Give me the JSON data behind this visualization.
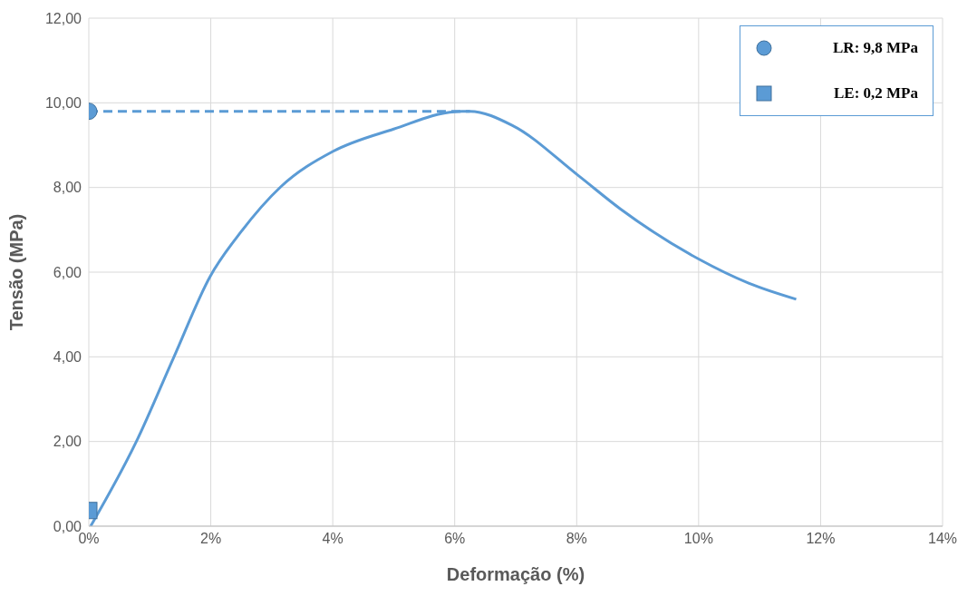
{
  "chart_data": {
    "type": "line",
    "xlabel": "Deformação (%)",
    "ylabel": "Tensão (MPa)",
    "xlim": [
      0,
      14
    ],
    "ylim": [
      0,
      12
    ],
    "xticks": [
      {
        "value": 0,
        "label": "0%"
      },
      {
        "value": 2,
        "label": "2%"
      },
      {
        "value": 4,
        "label": "4%"
      },
      {
        "value": 6,
        "label": "6%"
      },
      {
        "value": 8,
        "label": "8%"
      },
      {
        "value": 10,
        "label": "10%"
      },
      {
        "value": 12,
        "label": "12%"
      },
      {
        "value": 14,
        "label": "14%"
      }
    ],
    "yticks": [
      {
        "value": 0,
        "label": "0,00"
      },
      {
        "value": 2,
        "label": "2,00"
      },
      {
        "value": 4,
        "label": "4,00"
      },
      {
        "value": 6,
        "label": "6,00"
      },
      {
        "value": 8,
        "label": "8,00"
      },
      {
        "value": 10,
        "label": "10,00"
      },
      {
        "value": 12,
        "label": "12,00"
      }
    ],
    "grid": true,
    "legend": "top right",
    "line_style": "solid",
    "marker": "none",
    "series": [
      {
        "color": "#5b9bd5",
        "x": [
          0.03,
          0.78,
          1.39,
          1.99,
          2.5,
          3.15,
          4.0,
          5.0,
          6.0,
          6.25,
          6.94,
          8.02,
          8.72,
          10.0,
          10.82,
          11.6
        ],
        "values": [
          0,
          2.0,
          3.98,
          5.9,
          6.96,
          8.02,
          8.85,
          9.38,
          9.79,
          9.8,
          9.47,
          8.29,
          7.49,
          6.31,
          5.74,
          5.36
        ]
      },
      {
        "color": "#5b9bd5",
        "line_style": "dashed",
        "x": [
          0,
          6.25
        ],
        "values": [
          9.8,
          9.8
        ]
      },
      {
        "type": "scatter",
        "name": "LR: 9,8 MPa",
        "color": "#5b9bd5",
        "marker": "circle",
        "x": [
          0
        ],
        "values": [
          9.8
        ]
      },
      {
        "type": "scatter",
        "name": "LE: 0,2 MPa",
        "color": "#5b9bd5",
        "marker": "square",
        "x": [
          0
        ],
        "values": [
          0.37
        ]
      }
    ]
  }
}
